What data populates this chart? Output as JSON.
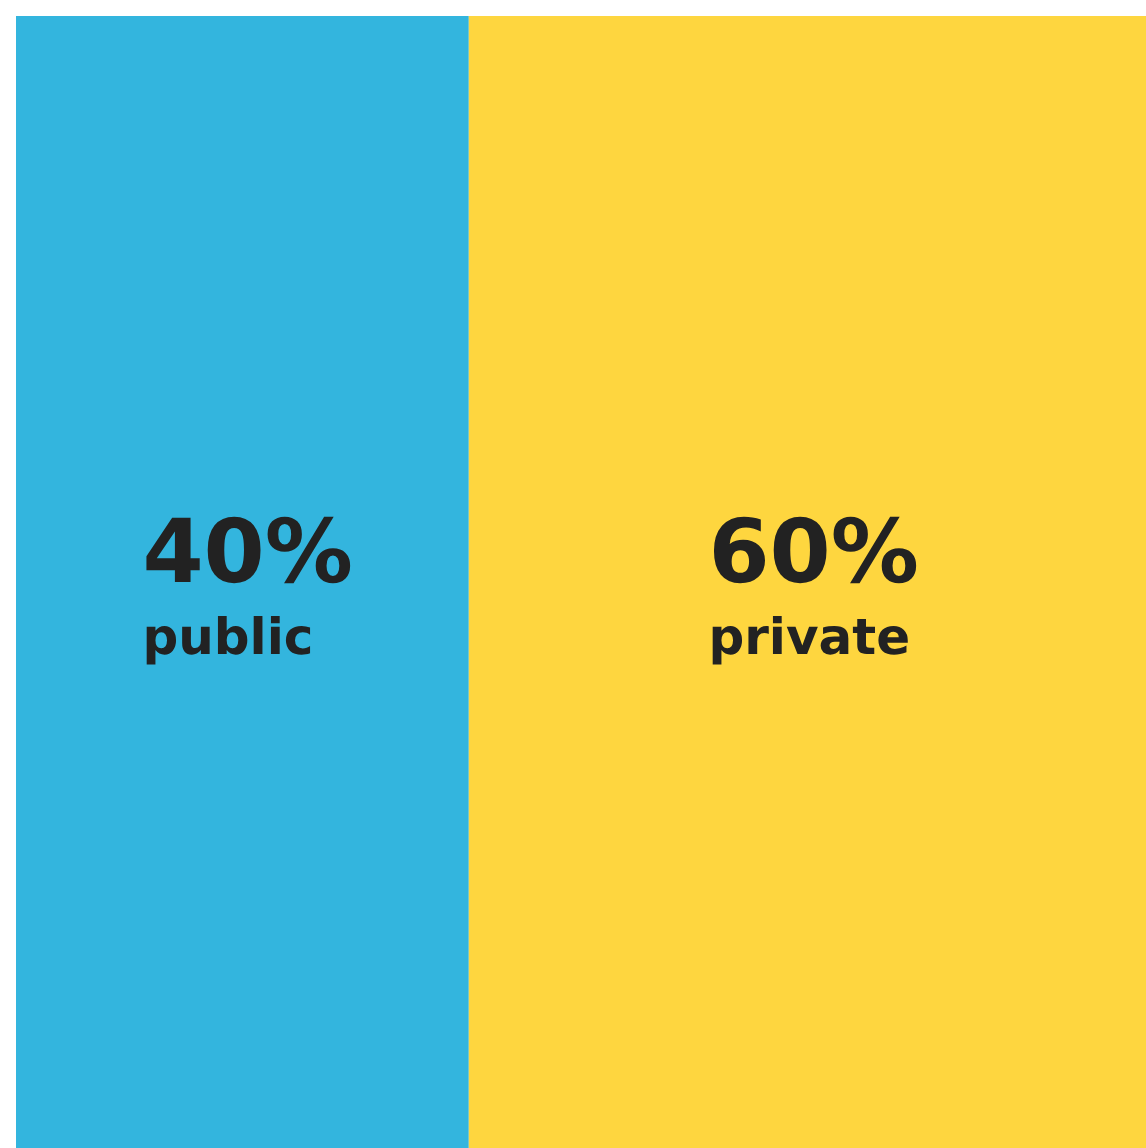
{
  "chart_data": {
    "type": "bar",
    "orientation": "horizontal",
    "stacked": true,
    "categories": [
      null
    ],
    "tick_labels": false,
    "legend": false,
    "series": [
      {
        "name": "public",
        "color": "#33b5de",
        "values": [
          40
        ],
        "value_labels": [
          "40%"
        ]
      },
      {
        "name": "private",
        "color": "#fed63f",
        "values": [
          60
        ],
        "value_labels": [
          "60%"
        ]
      }
    ]
  }
}
